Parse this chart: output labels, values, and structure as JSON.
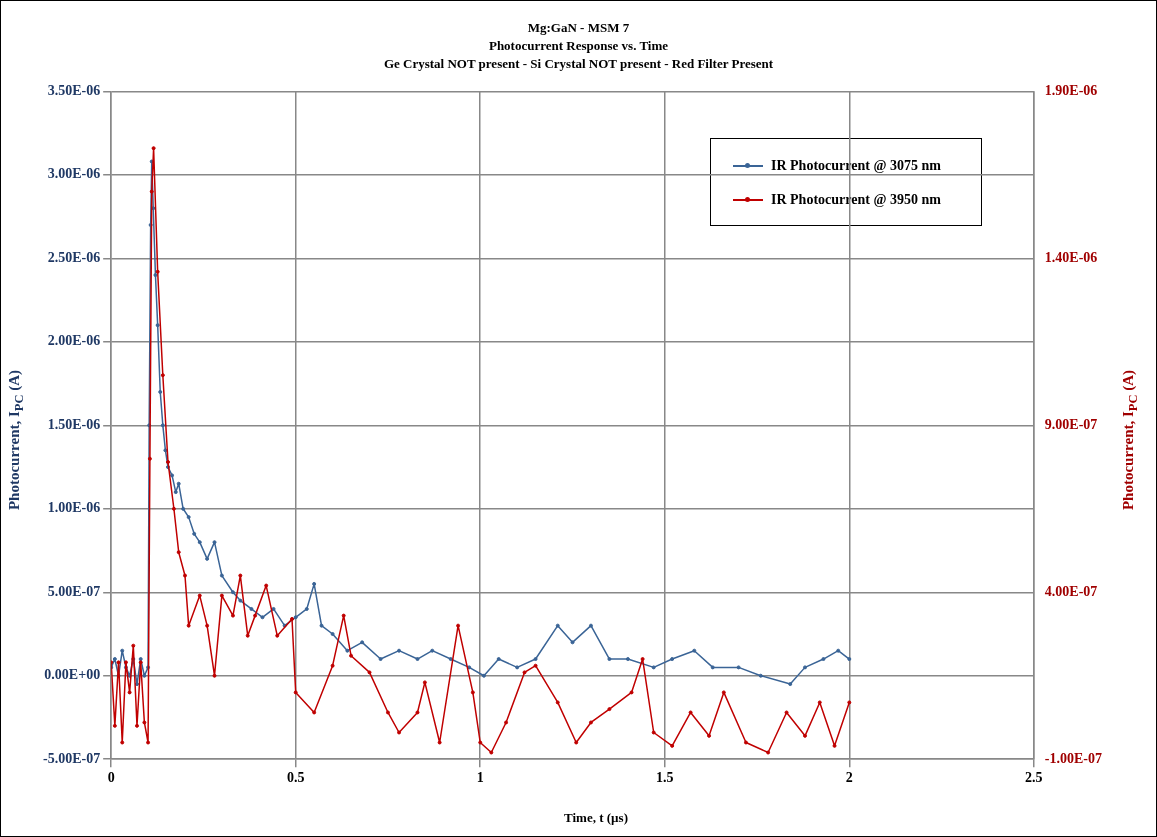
{
  "chart_data": {
    "type": "line",
    "title": "Mg:GaN - MSM 7",
    "subtitle": "Photocurrent Response vs. Time",
    "annotations": [
      "Ge Crystal NOT present - Si Crystal NOT present - Red Filter Present"
    ],
    "xlabel": "Time, t (µs)",
    "ylabel": "Photocurrent, I$_{PC}$ (A)",
    "y2label": "Photocurrent, I$_{PC}$ (A)",
    "xlim": [
      0,
      2.5
    ],
    "xticks": [
      0,
      0.5,
      1,
      1.5,
      2,
      2.5
    ],
    "ylim": [
      -5e-07,
      3.5e-06
    ],
    "yticks": [
      {
        "value": -5e-07,
        "label": "-5.00E-07"
      },
      {
        "value": 0,
        "label": "0.00E+00"
      },
      {
        "value": 5e-07,
        "label": "5.00E-07"
      },
      {
        "value": 1e-06,
        "label": "1.00E-06"
      },
      {
        "value": 1.5e-06,
        "label": "1.50E-06"
      },
      {
        "value": 2e-06,
        "label": "2.00E-06"
      },
      {
        "value": 2.5e-06,
        "label": "2.50E-06"
      },
      {
        "value": 3e-06,
        "label": "3.00E-06"
      },
      {
        "value": 3.5e-06,
        "label": "3.50E-06"
      }
    ],
    "y2lim": [
      -1e-07,
      1.9e-06
    ],
    "y2ticks": [
      {
        "value": -1e-07,
        "label": "-1.00E-07"
      },
      {
        "value": 4e-07,
        "label": "4.00E-07"
      },
      {
        "value": 9e-07,
        "label": "9.00E-07"
      },
      {
        "value": 1.4e-06,
        "label": "1.40E-06"
      },
      {
        "value": 1.9e-06,
        "label": "1.90E-06"
      }
    ],
    "grid": true,
    "legend": "top right",
    "marker": "circle",
    "line_style": "solid",
    "series": [
      {
        "name": "IR Photocurrent @ 3075 nm",
        "color": "#3a6496",
        "x": [
          0,
          0.01,
          0.02,
          0.03,
          0.04,
          0.05,
          0.06,
          0.07,
          0.08,
          0.09,
          0.1,
          0.103,
          0.107,
          0.11,
          0.114,
          0.12,
          0.126,
          0.133,
          0.14,
          0.147,
          0.154,
          0.165,
          0.175,
          0.183,
          0.195,
          0.21,
          0.225,
          0.24,
          0.26,
          0.28,
          0.3,
          0.33,
          0.35,
          0.38,
          0.41,
          0.44,
          0.47,
          0.5,
          0.53,
          0.55,
          0.57,
          0.6,
          0.64,
          0.68,
          0.73,
          0.78,
          0.83,
          0.87,
          0.92,
          0.97,
          1.01,
          1.05,
          1.1,
          1.15,
          1.21,
          1.25,
          1.3,
          1.35,
          1.4,
          1.47,
          1.52,
          1.58,
          1.63,
          1.7,
          1.76,
          1.84,
          1.88,
          1.93,
          1.97,
          2.0
        ],
        "values": [
          5e-08,
          1e-07,
          0,
          1.5e-07,
          5e-08,
          0,
          1e-07,
          -5e-08,
          1e-07,
          0,
          5e-08,
          1.5e-06,
          2.7e-06,
          3.08e-06,
          2.8e-06,
          2.4e-06,
          2.1e-06,
          1.7e-06,
          1.5e-06,
          1.35e-06,
          1.25e-06,
          1.2e-06,
          1.1e-06,
          1.15e-06,
          1e-06,
          9.5e-07,
          8.5e-07,
          8e-07,
          7e-07,
          8e-07,
          6e-07,
          5e-07,
          4.5e-07,
          4e-07,
          3.5e-07,
          4e-07,
          3e-07,
          3.5e-07,
          4e-07,
          5.5e-07,
          3e-07,
          2.5e-07,
          1.5e-07,
          2e-07,
          1e-07,
          1.5e-07,
          1e-07,
          1.5e-07,
          1e-07,
          5e-08,
          0,
          1e-07,
          5e-08,
          1e-07,
          3e-07,
          2e-07,
          3e-07,
          1e-07,
          1e-07,
          5e-08,
          1e-07,
          1.5e-07,
          5e-08,
          5e-08,
          0,
          -5e-08,
          5e-08,
          1e-07,
          1.5e-07,
          1e-07
        ]
      },
      {
        "name": "IR Photocurrent @ 3950 nm",
        "color": "#c00000",
        "axis": "y2",
        "x": [
          0,
          0.01,
          0.02,
          0.03,
          0.04,
          0.05,
          0.06,
          0.07,
          0.08,
          0.09,
          0.1,
          0.105,
          0.11,
          0.115,
          0.126,
          0.14,
          0.154,
          0.17,
          0.183,
          0.2,
          0.21,
          0.24,
          0.26,
          0.28,
          0.3,
          0.33,
          0.35,
          0.37,
          0.39,
          0.42,
          0.45,
          0.49,
          0.5,
          0.55,
          0.6,
          0.63,
          0.65,
          0.7,
          0.75,
          0.78,
          0.83,
          0.85,
          0.89,
          0.94,
          0.98,
          1.0,
          1.03,
          1.07,
          1.12,
          1.15,
          1.21,
          1.26,
          1.3,
          1.35,
          1.41,
          1.44,
          1.47,
          1.52,
          1.57,
          1.62,
          1.66,
          1.72,
          1.78,
          1.83,
          1.88,
          1.92,
          1.96,
          2.0
        ],
        "values": [
          1.9e-07,
          0,
          1.9e-07,
          -5e-08,
          1.9e-07,
          1e-07,
          2.4e-07,
          0,
          1.9e-07,
          1e-08,
          -5e-08,
          8e-07,
          1.6e-06,
          1.73e-06,
          1.36e-06,
          1.05e-06,
          7.9e-07,
          6.5e-07,
          5.2e-07,
          4.5e-07,
          3e-07,
          3.9e-07,
          3e-07,
          1.5e-07,
          3.9e-07,
          3.3e-07,
          4.5e-07,
          2.7e-07,
          3.3e-07,
          4.2e-07,
          2.7e-07,
          3.2e-07,
          1e-07,
          4e-08,
          1.8e-07,
          3.3e-07,
          2.1e-07,
          1.6e-07,
          4e-08,
          -2e-08,
          4e-08,
          1.3e-07,
          -5e-08,
          3e-07,
          1e-07,
          -5e-08,
          -8e-08,
          1e-08,
          1.6e-07,
          1.8e-07,
          7e-08,
          -5e-08,
          1e-08,
          5e-08,
          1e-07,
          2e-07,
          -2e-08,
          -6e-08,
          4e-08,
          -3e-08,
          1e-07,
          -5e-08,
          -8e-08,
          4e-08,
          -3e-08,
          7e-08,
          -6e-08,
          7e-08
        ]
      }
    ]
  }
}
